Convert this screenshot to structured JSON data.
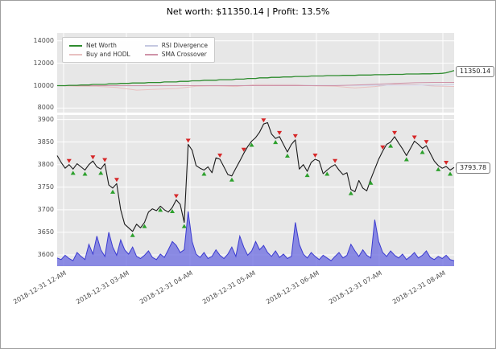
{
  "header": {
    "title": "Net worth: $11350.14 | Profit: 13.5%"
  },
  "legend": {
    "items": [
      {
        "label": "Net Worth",
        "color": "#2e8b2e"
      },
      {
        "label": "Buy and HODL",
        "color": "#e8c0c0"
      },
      {
        "label": "RSI Divergence",
        "color": "#c4c8e0"
      },
      {
        "label": "SMA Crossover",
        "color": "#cf93a8"
      }
    ]
  },
  "annotations": {
    "net_worth": "11350.14",
    "price": "3793.78"
  },
  "colors": {
    "panel_bg": "#e7e7e7",
    "grid": "#ffffff",
    "price_line": "#1a1a1a",
    "buy_marker": "#2ca02c",
    "sell_marker": "#d62728",
    "volume_fill": "#6969e0",
    "volume_line": "#3b3bd0",
    "tick_text": "#4d4d4d"
  },
  "chart_data": {
    "type": "line",
    "title": "Net worth: $11350.14 | Profit: 13.5%",
    "xlabel": "",
    "ylabel": "",
    "grid": true,
    "legend_position": "upper-left",
    "x_tick_labels": [
      "2018-12-31 12-AM",
      "2018-12-31 03-AM",
      "2018-12-31 04-AM",
      "2018-12-31 05-AM",
      "2018-12-31 06-AM",
      "2018-12-31 07-AM",
      "2018-12-31 08-AM"
    ],
    "panels": [
      {
        "name": "equity",
        "ylim": [
          7600,
          14700
        ],
        "yticks": [
          14000,
          12000,
          10000,
          8000
        ],
        "series": [
          {
            "name": "Net Worth",
            "color": "#2e8b2e",
            "values": [
              10000,
              10000,
              10000,
              10030,
              10030,
              10030,
              10060,
              10060,
              10060,
              10110,
              10110,
              10110,
              10110,
              10160,
              10160,
              10160,
              10200,
              10200,
              10200,
              10240,
              10240,
              10240,
              10240,
              10280,
              10280,
              10280,
              10280,
              10330,
              10330,
              10330,
              10330,
              10380,
              10380,
              10380,
              10430,
              10430,
              10430,
              10480,
              10480,
              10480,
              10480,
              10530,
              10530,
              10530,
              10530,
              10580,
              10580,
              10580,
              10640,
              10640,
              10640,
              10700,
              10700,
              10700,
              10740,
              10740,
              10740,
              10780,
              10780,
              10780,
              10820,
              10820,
              10820,
              10820,
              10860,
              10860,
              10860,
              10860,
              10900,
              10900,
              10900,
              10900,
              10920,
              10920,
              10920,
              10920,
              10950,
              10950,
              10950,
              10950,
              10980,
              10980,
              10980,
              10980,
              11010,
              11010,
              11010,
              11010,
              11040,
              11040,
              11040,
              11040,
              11060,
              11060,
              11060,
              11080,
              11080,
              11100,
              11150,
              11250,
              11350.14
            ]
          },
          {
            "name": "Buy and HODL",
            "color": "#e8c0c0",
            "values": [
              10000,
              9953,
              9935,
              9838,
              9602,
              9681,
              9743,
              9942,
              9987,
              9927,
              10105,
              10099,
              10092,
              9979,
              9948,
              9791,
              9921,
              10110,
              10084,
              9969,
              9931
            ]
          },
          {
            "name": "RSI Divergence",
            "color": "#c4c8e0",
            "values": [
              10000,
              10000,
              9995,
              9990,
              9985,
              9990,
              10000,
              10005,
              10008,
              10010,
              10012,
              10015,
              10018,
              10020,
              10022,
              10025,
              10030,
              10035,
              10040,
              10048,
              10055
            ]
          },
          {
            "name": "SMA Crossover",
            "color": "#cf93a8",
            "values": [
              10000,
              10000,
              10000,
              10000,
              10000,
              10000,
              10000,
              10000,
              10000,
              10000,
              10000,
              10000,
              10000,
              10000,
              10000,
              10050,
              10120,
              10200,
              10260,
              10290,
              10290
            ]
          }
        ],
        "last_value_label": "11350.14"
      },
      {
        "name": "price",
        "ylim": [
          3575,
          3910
        ],
        "yticks": [
          3900,
          3850,
          3800,
          3750,
          3700,
          3650,
          3600
        ],
        "series": [
          {
            "name": "Price",
            "color": "#1a1a1a",
            "values": [
              3820,
              3805,
              3792,
              3800,
              3790,
              3802,
              3795,
              3788,
              3800,
              3808,
              3795,
              3790,
              3802,
              3755,
              3748,
              3758,
              3700,
              3668,
              3660,
              3652,
              3668,
              3660,
              3672,
              3695,
              3702,
              3698,
              3708,
              3700,
              3695,
              3705,
              3722,
              3712,
              3672,
              3845,
              3832,
              3798,
              3792,
              3788,
              3795,
              3782,
              3815,
              3812,
              3795,
              3778,
              3775,
              3792,
              3808,
              3825,
              3840,
              3852,
              3860,
              3872,
              3890,
              3893,
              3868,
              3858,
              3862,
              3845,
              3828,
              3845,
              3855,
              3790,
              3800,
              3785,
              3805,
              3812,
              3808,
              3780,
              3788,
              3795,
              3800,
              3788,
              3778,
              3782,
              3745,
              3740,
              3765,
              3748,
              3742,
              3768,
              3790,
              3812,
              3830,
              3845,
              3850,
              3862,
              3848,
              3835,
              3820,
              3836,
              3852,
              3845,
              3836,
              3842,
              3825,
              3808,
              3798,
              3792,
              3796,
              3788,
              3793.78
            ]
          }
        ],
        "markers": {
          "buy": {
            "color": "#2ca02c",
            "indices": [
              4,
              7,
              11,
              14,
              19,
              22,
              26,
              29,
              32,
              37,
              44,
              49,
              55,
              58,
              63,
              68,
              74,
              79,
              84,
              88,
              92,
              96,
              99
            ]
          },
          "sell": {
            "color": "#d62728",
            "indices": [
              3,
              9,
              12,
              15,
              30,
              33,
              41,
              47,
              52,
              56,
              60,
              65,
              70,
              82,
              85,
              90,
              93,
              98
            ]
          }
        },
        "last_value_label": "3793.78"
      },
      {
        "name": "volume",
        "max": 100,
        "color_fill": "#6969e0",
        "color_line": "#3b3bd0",
        "values": [
          15,
          12,
          20,
          14,
          10,
          25,
          18,
          12,
          40,
          22,
          55,
          30,
          18,
          62,
          35,
          20,
          48,
          30,
          22,
          35,
          18,
          14,
          20,
          28,
          16,
          12,
          22,
          16,
          30,
          45,
          38,
          25,
          30,
          100,
          45,
          22,
          16,
          25,
          14,
          18,
          30,
          20,
          14,
          22,
          35,
          18,
          55,
          35,
          20,
          28,
          45,
          30,
          38,
          25,
          18,
          28,
          16,
          22,
          14,
          18,
          80,
          40,
          22,
          15,
          25,
          18,
          12,
          20,
          15,
          10,
          18,
          25,
          15,
          20,
          40,
          28,
          18,
          30,
          20,
          15,
          85,
          45,
          25,
          18,
          28,
          20,
          15,
          22,
          12,
          18,
          25,
          15,
          20,
          28,
          16,
          12,
          18,
          14,
          20,
          12,
          10
        ]
      }
    ]
  }
}
